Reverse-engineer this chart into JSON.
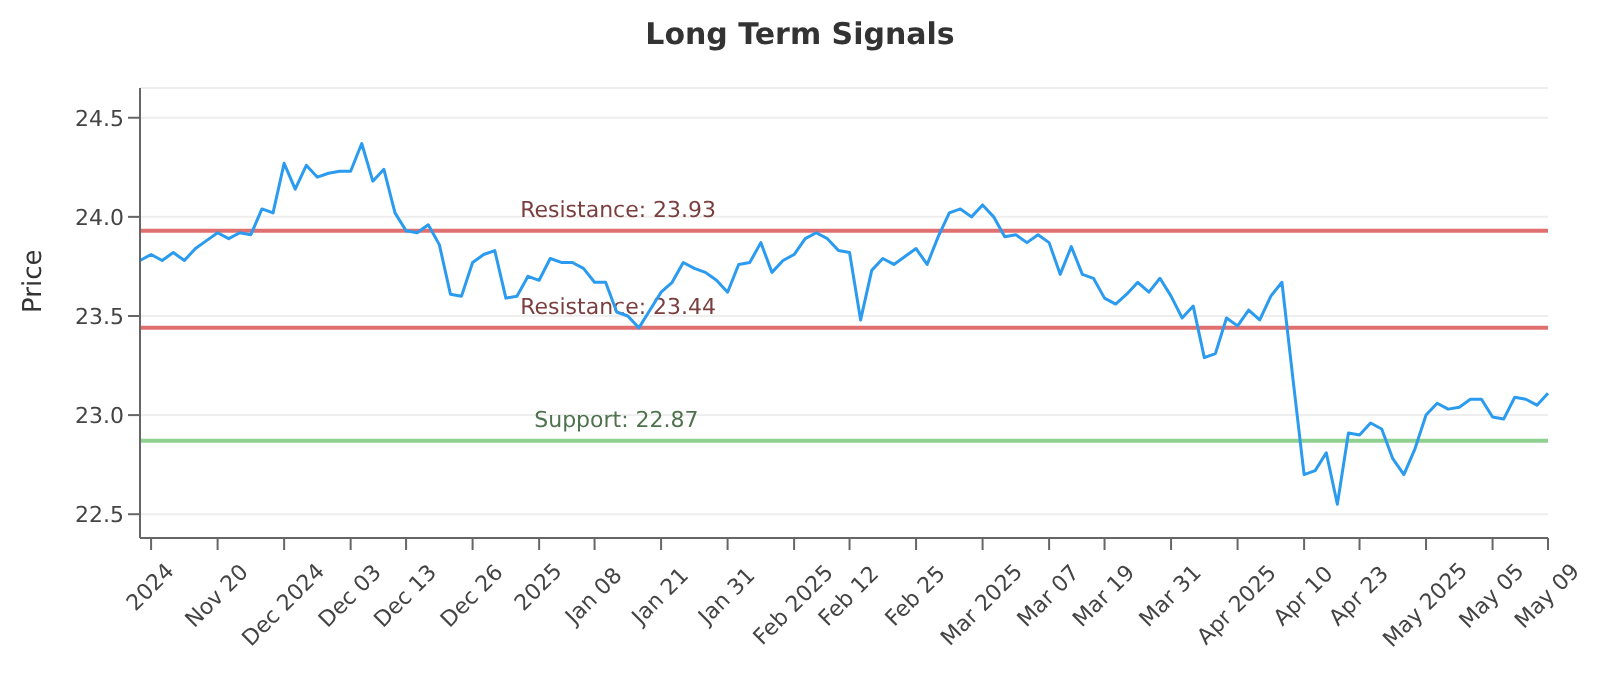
{
  "chart_data": {
    "type": "line",
    "title": "Long Term Signals",
    "ylabel": "Price",
    "categories": [
      null,
      "2024",
      null,
      null,
      null,
      null,
      null,
      "Nov 20",
      null,
      null,
      null,
      null,
      null,
      "Dec 2024",
      null,
      null,
      null,
      null,
      null,
      "Dec 03",
      null,
      null,
      null,
      null,
      "Dec 13",
      null,
      null,
      null,
      null,
      null,
      "Dec 26",
      null,
      null,
      null,
      null,
      null,
      "2025",
      null,
      null,
      null,
      null,
      "Jan 08",
      null,
      null,
      null,
      null,
      null,
      "Jan 21",
      null,
      null,
      null,
      null,
      null,
      "Jan 31",
      null,
      null,
      null,
      null,
      null,
      "Feb 2025",
      null,
      null,
      null,
      null,
      "Feb 12",
      null,
      null,
      null,
      null,
      null,
      "Feb 25",
      null,
      null,
      null,
      null,
      null,
      "Mar 2025",
      null,
      null,
      null,
      null,
      null,
      "Mar 07",
      null,
      null,
      null,
      null,
      "Mar 19",
      null,
      null,
      null,
      null,
      null,
      "Mar 31",
      null,
      null,
      null,
      null,
      null,
      "Apr 2025",
      null,
      null,
      null,
      null,
      null,
      "Apr 10",
      null,
      null,
      null,
      null,
      "Apr 23",
      null,
      null,
      null,
      null,
      null,
      "May 2025",
      null,
      null,
      null,
      null,
      null,
      "May 05",
      null,
      null,
      null,
      null,
      "May 09"
    ],
    "series": [
      {
        "color": "#2b9bf0",
        "values": [
          23.78,
          23.81,
          23.78,
          23.82,
          23.78,
          23.84,
          23.88,
          23.92,
          23.89,
          23.92,
          23.91,
          24.04,
          24.02,
          24.27,
          24.14,
          24.26,
          24.2,
          24.22,
          24.23,
          24.23,
          24.37,
          24.18,
          24.24,
          24.02,
          23.93,
          23.92,
          23.96,
          23.86,
          23.61,
          23.6,
          23.77,
          23.81,
          23.83,
          23.59,
          23.6,
          23.7,
          23.68,
          23.79,
          23.77,
          23.77,
          23.74,
          23.67,
          23.67,
          23.52,
          23.5,
          23.44,
          23.53,
          23.62,
          23.67,
          23.77,
          23.74,
          23.72,
          23.68,
          23.62,
          23.76,
          23.77,
          23.87,
          23.72,
          23.78,
          23.81,
          23.89,
          23.92,
          23.89,
          23.83,
          23.82,
          23.48,
          23.73,
          23.79,
          23.76,
          23.8,
          23.84,
          23.76,
          23.9,
          24.02,
          24.04,
          24.0,
          24.06,
          24.0,
          23.9,
          23.91,
          23.87,
          23.91,
          23.87,
          23.71,
          23.85,
          23.71,
          23.69,
          23.59,
          23.56,
          23.61,
          23.67,
          23.62,
          23.69,
          23.6,
          23.49,
          23.55,
          23.29,
          23.31,
          23.49,
          23.45,
          23.53,
          23.48,
          23.6,
          23.67,
          23.18,
          22.7,
          22.72,
          22.81,
          22.55,
          22.91,
          22.9,
          22.96,
          22.93,
          22.78,
          22.7,
          22.83,
          23.0,
          23.06,
          23.03,
          23.04,
          23.08,
          23.08,
          22.99,
          22.98,
          23.09,
          23.08,
          23.05,
          23.11
        ]
      }
    ],
    "ylim": [
      22.38,
      24.65
    ],
    "yticks": [
      22.5,
      {
        "value": 23,
        "label": "23.0"
      },
      23.5,
      {
        "value": 24,
        "label": "24.0"
      },
      24.5
    ],
    "grid": "y",
    "legend": false,
    "marker": "none",
    "ref_lines": [
      {
        "axis": "y",
        "value": 23.93,
        "label": "Resistance: 23.93",
        "color": "#e07070"
      },
      {
        "axis": "y",
        "value": 23.44,
        "label": "Resistance: 23.44",
        "color": "#e07070"
      },
      {
        "axis": "y",
        "value": 22.87,
        "label": "Support: 22.87",
        "color": "#8fcf8f"
      }
    ]
  }
}
